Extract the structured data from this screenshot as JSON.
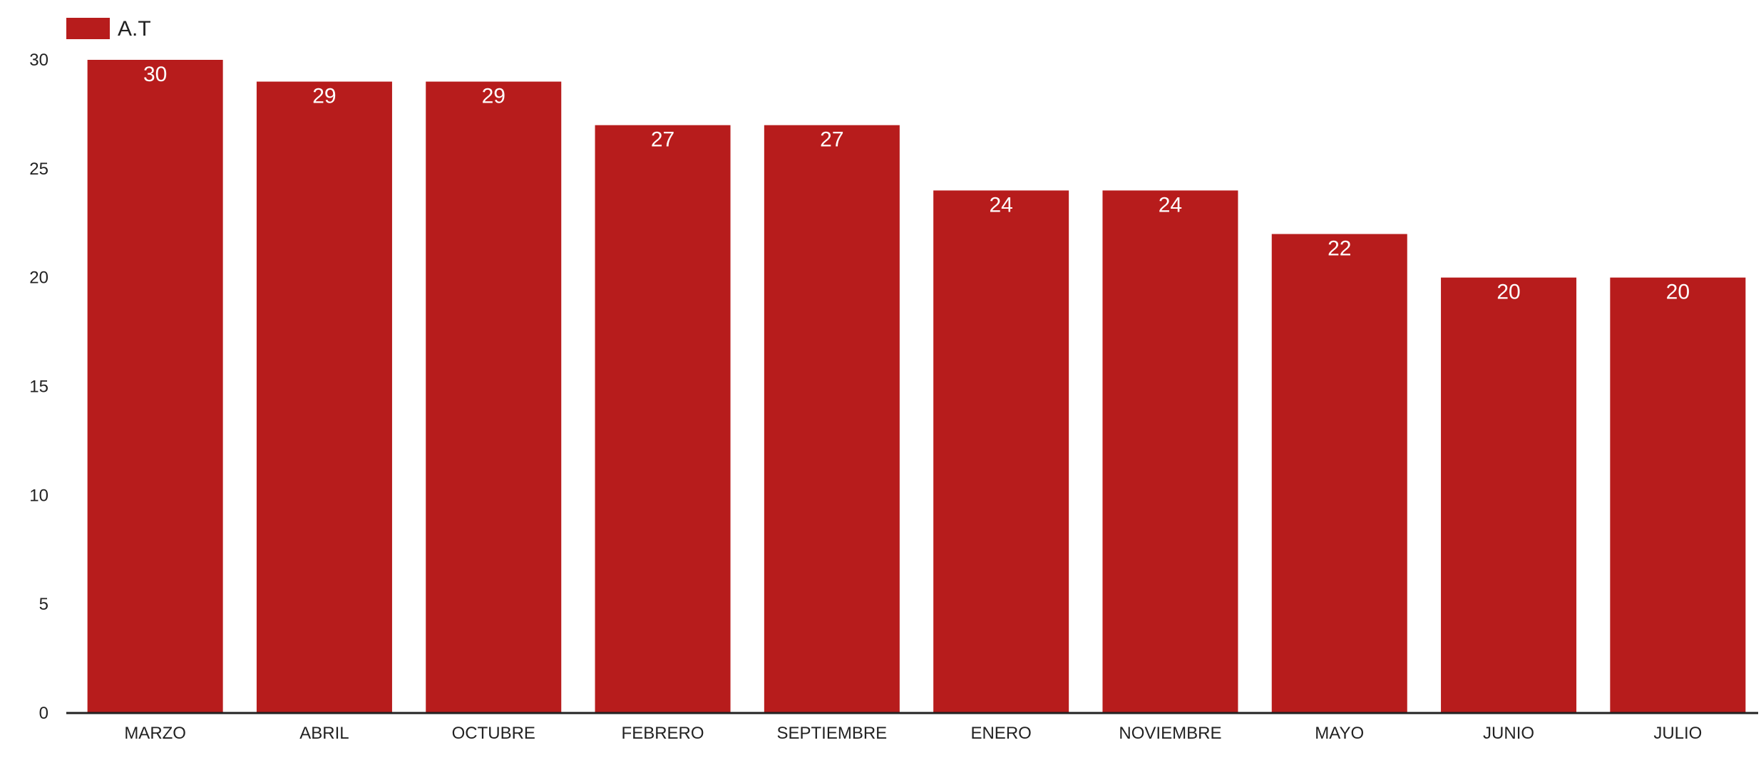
{
  "chart_data": {
    "type": "bar",
    "categories": [
      "MARZO",
      "ABRIL",
      "OCTUBRE",
      "FEBRERO",
      "SEPTIEMBRE",
      "ENERO",
      "NOVIEMBRE",
      "MAYO",
      "JUNIO",
      "JULIO"
    ],
    "series": [
      {
        "name": "A.T",
        "values": [
          30,
          29,
          29,
          27,
          27,
          24,
          24,
          22,
          20,
          20
        ],
        "color": "#b71c1c"
      }
    ],
    "y_ticks": [
      0,
      5,
      10,
      15,
      20,
      25,
      30
    ],
    "ylim": [
      0,
      30
    ],
    "title": "",
    "xlabel": "",
    "ylabel": "",
    "grid": false,
    "legend_position": "top-left",
    "data_labels": true
  }
}
